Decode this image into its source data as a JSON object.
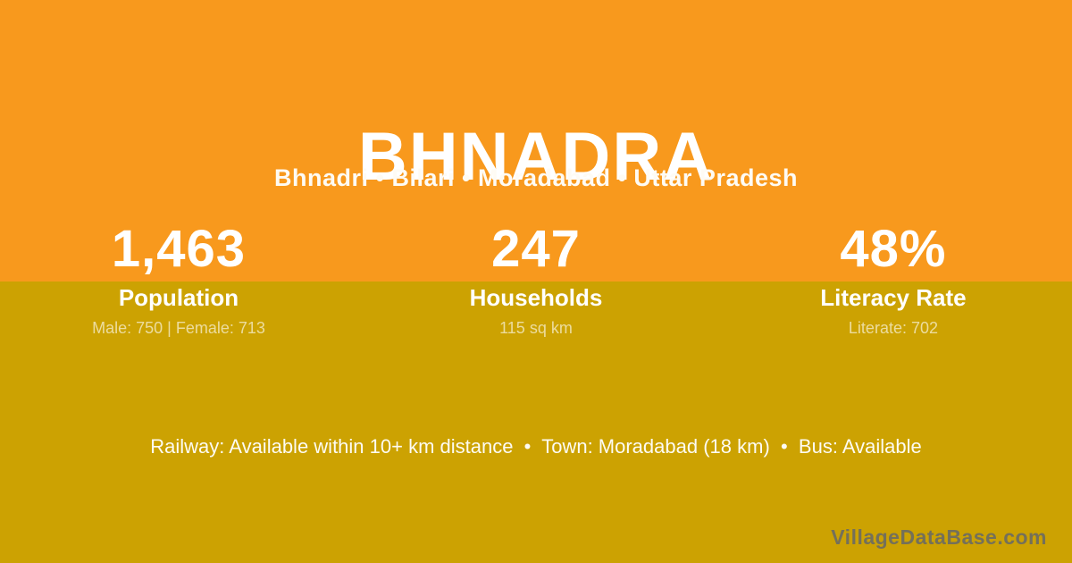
{
  "theme": {
    "top_band_color": "#F8991D",
    "bottom_band_color": "#CCA202",
    "text_color": "#FFFFFF",
    "detail_text_color": "rgba(255,255,255,0.62)",
    "watermark_color": "rgba(106,106,100,0.9)"
  },
  "header": {
    "title": "BHNADRA",
    "breadcrumb": "Bhnadri • Bilari • Moradabad • Uttar Pradesh"
  },
  "stats": [
    {
      "value": "1,463",
      "label": "Population",
      "detail": "Male: 750 | Female: 713"
    },
    {
      "value": "247",
      "label": "Households",
      "detail": "115 sq km"
    },
    {
      "value": "48%",
      "label": "Literacy Rate",
      "detail": "Literate: 702"
    }
  ],
  "footer": {
    "facts_line": "Railway: Available within 10+ km distance  •  Town: Moradabad (18 km)  •  Bus: Available",
    "watermark": "VillageDataBase.com"
  }
}
